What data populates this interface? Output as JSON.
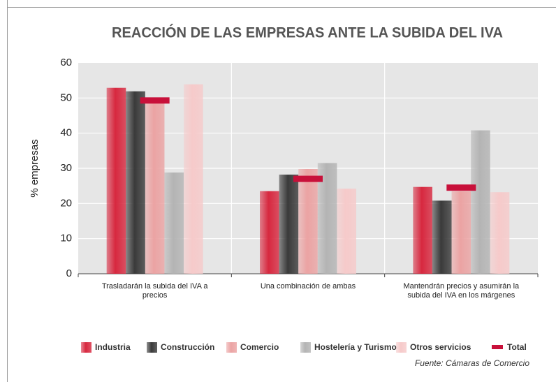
{
  "chart_data": {
    "type": "bar",
    "title": "REACCIÓN DE LAS EMPRESAS ANTE LA SUBIDA DEL IVA",
    "y_label": "% empresas",
    "source": "Fuente: Cámaras de Comercio",
    "categories": [
      "Trasladarán la subida del IVA a precios",
      "Una combinación de ambas",
      "Mantendrán precios y asumirán la subida del IVA en los márgenes"
    ],
    "series": [
      {
        "name": "Industria",
        "color": "#d7283f",
        "values": [
          52.9,
          23.5,
          24.7
        ]
      },
      {
        "name": "Construcción",
        "color": "#3a3a3a",
        "values": [
          51.9,
          28.2,
          20.8
        ]
      },
      {
        "name": "Comercio",
        "color": "#eba3a3",
        "values": [
          48.5,
          29.8,
          23.5
        ]
      },
      {
        "name": "Hostelería y Turismo",
        "color": "#b4b4b4",
        "values": [
          28.8,
          31.5,
          40.8
        ]
      },
      {
        "name": "Otros servicios",
        "color": "#f6caca",
        "values": [
          53.9,
          24.2,
          23.2
        ]
      }
    ],
    "total": {
      "name": "Total",
      "color": "#c8103a",
      "values": [
        49.3,
        27.0,
        24.5
      ]
    },
    "ylim": [
      0,
      60
    ],
    "yticks": [
      0,
      10,
      20,
      30,
      40,
      50,
      60
    ],
    "grid": true
  }
}
